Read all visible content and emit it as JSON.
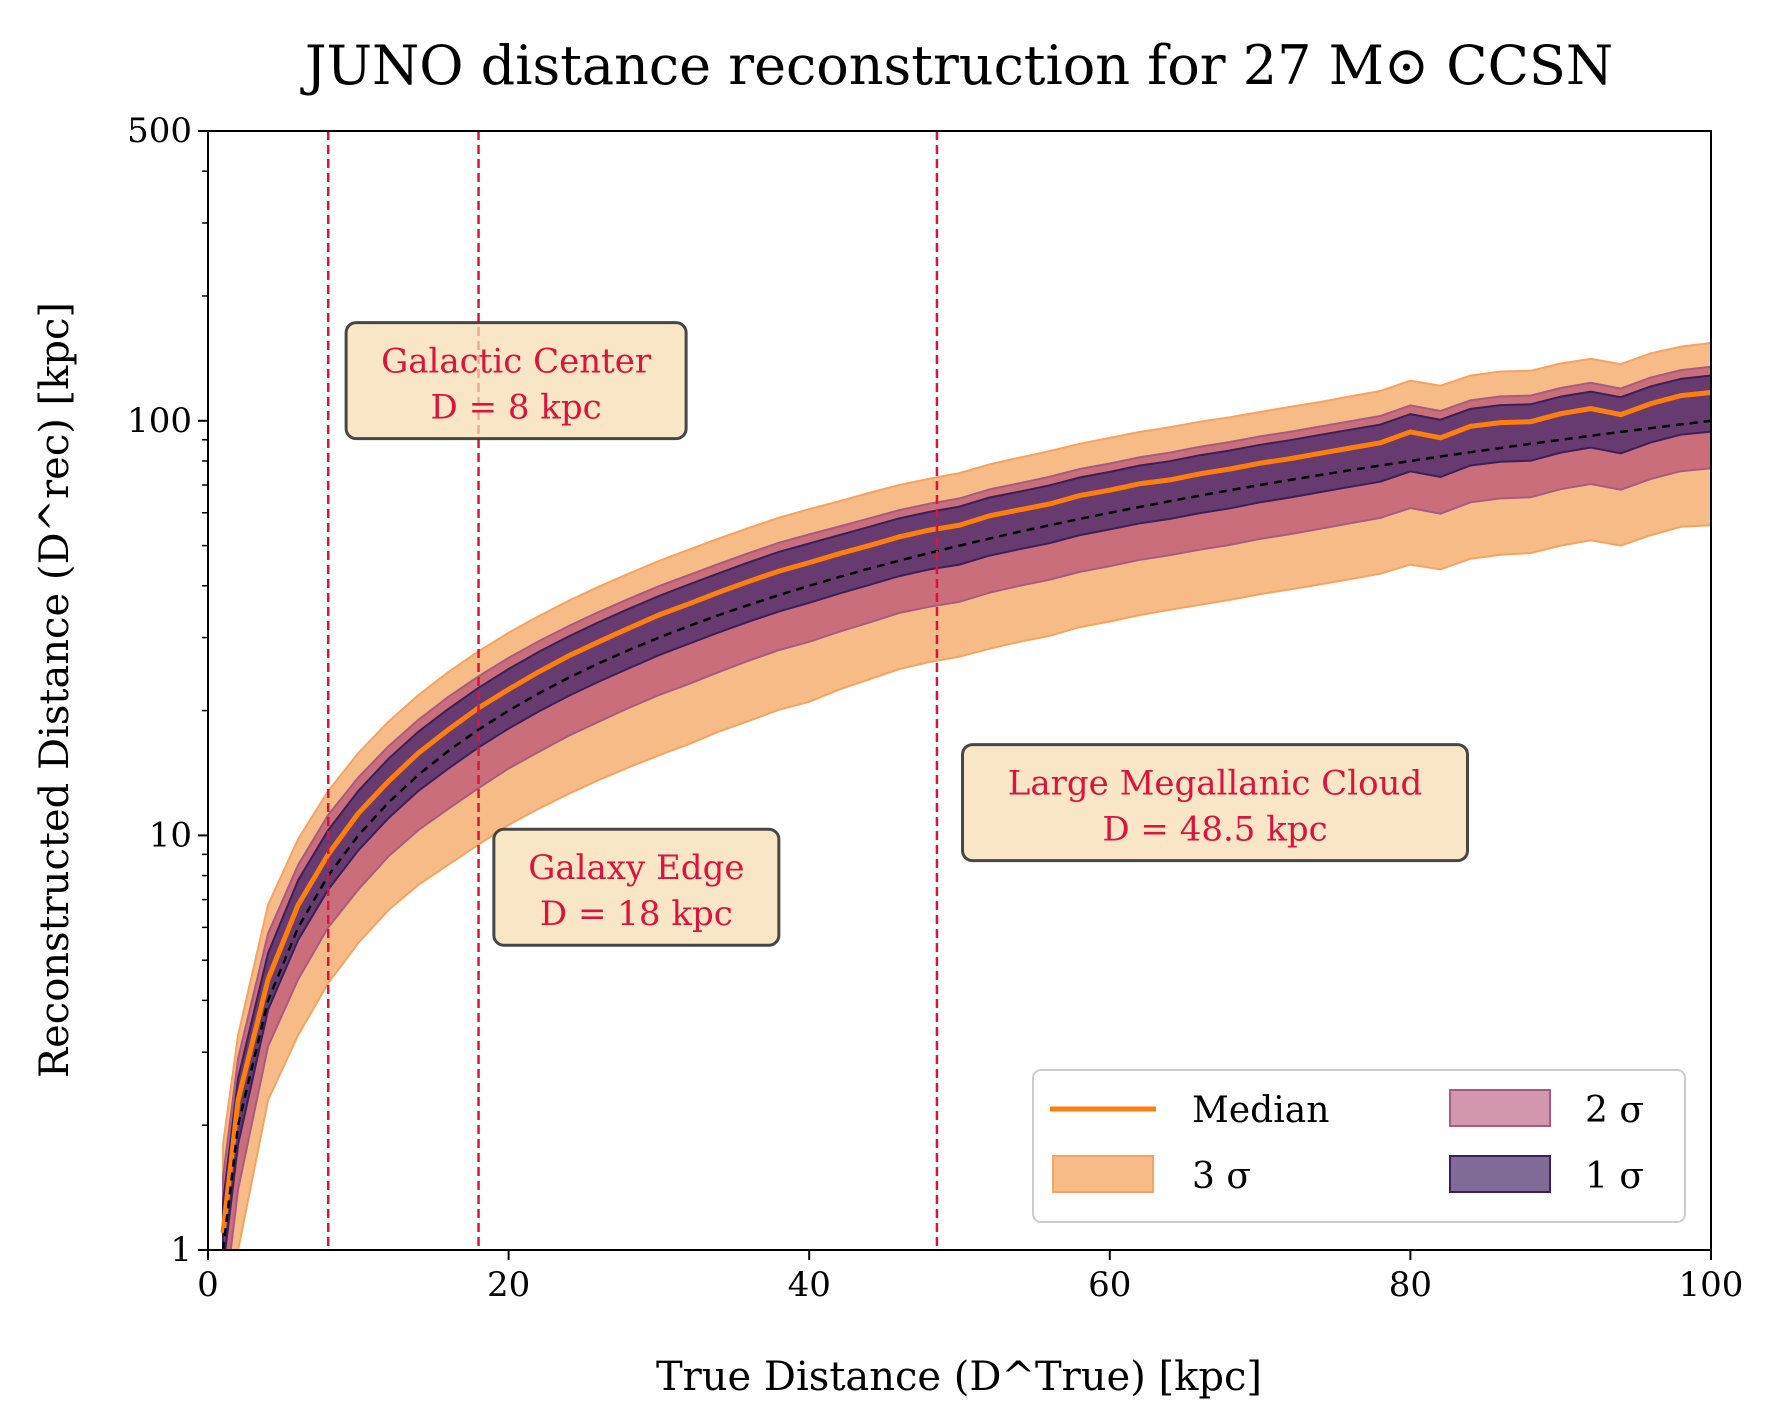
{
  "chart_data": {
    "type": "area",
    "title": "JUNO distance reconstruction for 27 M⊙ CCSN",
    "xlabel": "True Distance (D^True) [kpc]",
    "ylabel": "Reconstructed Distance (D^rec) [kpc]",
    "xlim": [
      0,
      100
    ],
    "ylim": [
      1,
      500
    ],
    "yscale": "log",
    "grid": false,
    "legend_position": "lower-right",
    "x_ticks": [
      0,
      20,
      40,
      60,
      80,
      100
    ],
    "y_ticks": [
      1,
      10,
      100,
      500
    ],
    "x": [
      1,
      2,
      4,
      6,
      8,
      10,
      12,
      14,
      16,
      18,
      20,
      22,
      24,
      26,
      28,
      30,
      32,
      34,
      36,
      38,
      40,
      42,
      44,
      46,
      48,
      50,
      52,
      54,
      56,
      58,
      60,
      62,
      64,
      66,
      68,
      70,
      72,
      74,
      76,
      78,
      80,
      82,
      84,
      86,
      88,
      90,
      92,
      94,
      96,
      98,
      100
    ],
    "series": [
      {
        "name": "Median",
        "kind": "line",
        "color": "#ff7f0e",
        "values": [
          1.1,
          2.3,
          4.5,
          6.8,
          9.0,
          11.3,
          13.5,
          15.8,
          18.0,
          20.3,
          22.5,
          24.8,
          27.1,
          29.3,
          31.6,
          34.0,
          36.2,
          38.6,
          41.0,
          43.4,
          45.5,
          47.8,
          50.0,
          52.5,
          54.5,
          56.0,
          59.0,
          61.0,
          63.0,
          66.0,
          68.0,
          70.5,
          72.0,
          74.5,
          76.5,
          79.0,
          81.0,
          83.5,
          86.0,
          88.5,
          94.0,
          91.0,
          97.0,
          99.0,
          99.5,
          104.0,
          107.0,
          103.5,
          110.0,
          115.0,
          117.0
        ]
      },
      {
        "name": "3 σ",
        "kind": "band",
        "color": "#f4a460",
        "lower": [
          0.5,
          1.0,
          2.3,
          3.3,
          4.4,
          5.5,
          6.6,
          7.6,
          8.5,
          9.5,
          10.6,
          11.6,
          12.6,
          13.6,
          14.6,
          15.6,
          16.6,
          17.8,
          18.9,
          20.1,
          21.0,
          22.5,
          23.8,
          25.2,
          26.2,
          27.0,
          28.2,
          29.3,
          30.3,
          31.8,
          32.8,
          34.0,
          35.0,
          36.0,
          37.0,
          38.2,
          39.2,
          40.3,
          41.5,
          42.8,
          45.0,
          43.8,
          46.5,
          47.5,
          48.0,
          50.0,
          51.5,
          50.0,
          53.0,
          55.5,
          56.0
        ],
        "upper": [
          1.8,
          3.3,
          6.8,
          9.8,
          12.8,
          15.8,
          18.8,
          21.8,
          24.8,
          27.8,
          30.8,
          33.8,
          36.8,
          39.8,
          42.8,
          45.9,
          48.9,
          52.0,
          55.2,
          58.4,
          61.2,
          64.0,
          67.0,
          70.0,
          72.5,
          74.8,
          78.5,
          81.5,
          84.5,
          88.0,
          91.0,
          94.0,
          96.5,
          99.5,
          102.0,
          105.0,
          108.0,
          111.0,
          114.5,
          118.0,
          125.0,
          121.5,
          128.5,
          131.5,
          132.0,
          137.5,
          141.0,
          137.0,
          145.5,
          151.0,
          154.0
        ]
      },
      {
        "name": "2 σ",
        "kind": "band",
        "color": "#c77c9b",
        "lower": [
          0.7,
          1.4,
          3.1,
          4.5,
          6.0,
          7.4,
          8.9,
          10.3,
          11.6,
          13.0,
          14.5,
          15.9,
          17.4,
          18.8,
          20.3,
          21.8,
          23.2,
          24.8,
          26.4,
          28.0,
          29.3,
          31.0,
          32.6,
          34.4,
          35.6,
          36.6,
          38.5,
          40.0,
          41.4,
          43.2,
          44.6,
          46.2,
          47.4,
          48.9,
          50.2,
          51.9,
          53.3,
          54.9,
          56.6,
          58.3,
          61.6,
          59.7,
          63.6,
          65.0,
          65.4,
          68.4,
          70.4,
          68.2,
          72.4,
          75.6,
          76.8
        ],
        "upper": [
          1.5,
          2.9,
          5.8,
          8.5,
          11.2,
          13.8,
          16.4,
          19.0,
          21.6,
          24.2,
          26.8,
          29.4,
          32.0,
          34.6,
          37.2,
          39.9,
          42.5,
          45.2,
          48.0,
          50.8,
          53.2,
          55.6,
          58.2,
          60.9,
          63.1,
          65.0,
          68.3,
          70.7,
          73.3,
          76.5,
          78.9,
          81.7,
          83.8,
          86.6,
          88.9,
          91.7,
          94.1,
          96.9,
          99.8,
          102.7,
          108.9,
          105.6,
          112.0,
          114.5,
          115.0,
          120.0,
          123.5,
          119.6,
          127.2,
          132.5,
          135.0
        ]
      },
      {
        "name": "1 σ",
        "kind": "band",
        "color": "#4b2d6b",
        "lower": [
          0.9,
          1.8,
          3.8,
          5.6,
          7.4,
          9.2,
          11.0,
          12.8,
          14.5,
          16.3,
          18.1,
          19.9,
          21.7,
          23.5,
          25.3,
          27.2,
          29.0,
          30.9,
          32.8,
          34.7,
          36.4,
          38.3,
          40.2,
          42.2,
          43.8,
          45.0,
          47.3,
          49.0,
          50.7,
          53.0,
          54.7,
          56.6,
          58.0,
          59.9,
          61.5,
          63.6,
          65.3,
          67.3,
          69.3,
          71.3,
          75.5,
          73.2,
          78.0,
          79.7,
          80.1,
          83.8,
          86.2,
          83.5,
          88.7,
          92.6,
          94.2
        ],
        "upper": [
          1.3,
          2.6,
          5.2,
          7.8,
          10.3,
          12.8,
          15.3,
          17.8,
          20.2,
          22.7,
          25.2,
          27.7,
          30.2,
          32.7,
          35.2,
          37.8,
          40.3,
          42.9,
          45.6,
          48.3,
          50.6,
          53.0,
          55.5,
          58.2,
          60.3,
          62.1,
          65.3,
          67.5,
          69.9,
          73.0,
          75.3,
          78.0,
          79.9,
          82.6,
          84.8,
          87.5,
          89.8,
          92.5,
          95.2,
          97.9,
          103.8,
          100.6,
          106.8,
          109.1,
          109.6,
          114.4,
          117.6,
          114.0,
          121.1,
          126.2,
          128.6
        ]
      },
      {
        "name": "True distance",
        "kind": "dashed-line",
        "color": "#000000",
        "values": [
          1,
          2,
          4,
          6,
          8,
          10,
          12,
          14,
          16,
          18,
          20,
          22,
          24,
          26,
          28,
          30,
          32,
          34,
          36,
          38,
          40,
          42,
          44,
          46,
          48,
          50,
          52,
          54,
          56,
          58,
          60,
          62,
          64,
          66,
          68,
          70,
          72,
          74,
          76,
          78,
          80,
          82,
          84,
          86,
          88,
          90,
          92,
          94,
          96,
          98,
          100
        ]
      }
    ],
    "vlines": [
      {
        "x": 8,
        "color": "#dc143c"
      },
      {
        "x": 18,
        "color": "#dc143c"
      },
      {
        "x": 48.5,
        "color": "#dc143c"
      }
    ],
    "annotations": [
      {
        "id": "galactic-center",
        "line1": "Galactic Center",
        "line2": "D = 8 kpc",
        "x": 20.5,
        "y": 125
      },
      {
        "id": "galaxy-edge",
        "line1": "Galaxy Edge",
        "line2": "D = 18 kpc",
        "x": 28.5,
        "y": 7.5
      },
      {
        "id": "lmc",
        "line1": "Large Megallanic Cloud",
        "line2": "D = 48.5 kpc",
        "x": 67,
        "y": 12
      }
    ],
    "legend": {
      "median": "Median",
      "sigma3": "3 σ",
      "sigma2": "2 σ",
      "sigma1": "1 σ"
    }
  }
}
